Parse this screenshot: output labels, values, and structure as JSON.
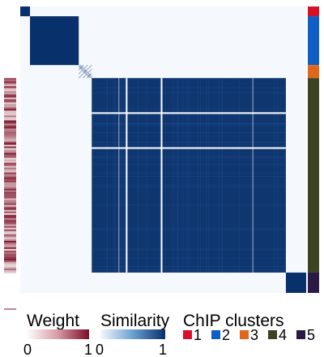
{
  "chart_data": {
    "type": "heatmap",
    "title": "",
    "xlabel": "",
    "ylabel": "",
    "n_samples": 352,
    "row_order": "clustered",
    "color_scale": {
      "min": 0,
      "max": 1,
      "low_color": "#f5f9fe",
      "high_color": "#08306b"
    },
    "blocks": [
      {
        "cluster": 1,
        "start": 0,
        "end": 12,
        "similarity": 1.0
      },
      {
        "cluster": 2,
        "start": 12,
        "end": 72,
        "similarity": 1.0
      },
      {
        "cluster": 3,
        "start": 72,
        "end": 88,
        "similarity": 0.6,
        "pattern": "sparse"
      },
      {
        "cluster": 4,
        "start": 88,
        "end": 327,
        "similarity": 0.97
      },
      {
        "cluster": 5,
        "start": 327,
        "end": 352,
        "similarity": 1.0
      }
    ],
    "gap_lines": [
      131,
      174
    ],
    "side_bars": {
      "left": {
        "name": "Weight",
        "range": [
          0,
          1
        ],
        "low_color": "#ffffff",
        "high_color": "#7a0d26"
      },
      "right": {
        "name": "ChIP clusters"
      }
    },
    "legend": {
      "weight": {
        "title": "Weight",
        "min_label": "0",
        "max_label": "1"
      },
      "similarity": {
        "title": "Similarity",
        "min_label": "0",
        "max_label": "1"
      },
      "clusters": {
        "title": "ChIP clusters",
        "items": [
          {
            "label": "1",
            "color": "#d7102a"
          },
          {
            "label": "2",
            "color": "#0e5ec6"
          },
          {
            "label": "3",
            "color": "#e0661b"
          },
          {
            "label": "4",
            "color": "#3a4422"
          },
          {
            "label": "5",
            "color": "#2a1a44"
          }
        ]
      }
    }
  }
}
